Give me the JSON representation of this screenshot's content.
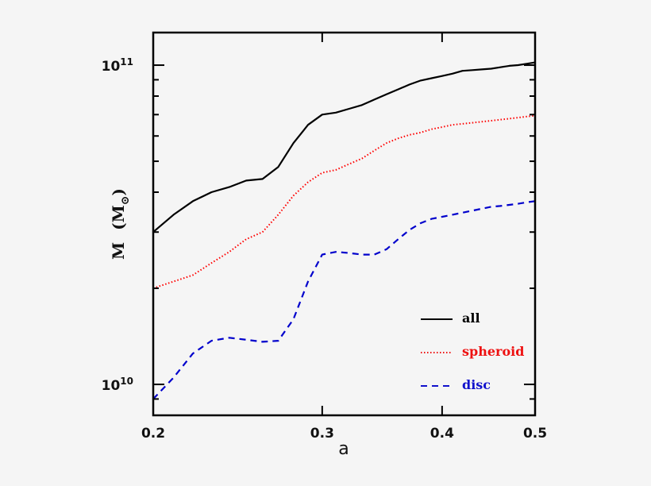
{
  "chart_data": {
    "type": "line",
    "title": "",
    "xlabel": "a",
    "ylabel": "M (M⊙)",
    "xscale": "log",
    "yscale": "log",
    "xlim": [
      0.2,
      0.5
    ],
    "ylim": [
      8000000000.0,
      126500000000.0
    ],
    "grid": false,
    "legend_position": "lower right (inside)",
    "x_ticks": [
      0.2,
      0.3,
      0.4,
      0.5
    ],
    "x_tick_labels": [
      "0.2",
      "0.3",
      "0.4",
      "0.5"
    ],
    "y_ticks": [
      10000000000.0,
      100000000000.0
    ],
    "y_tick_labels": [
      {
        "base": "10",
        "exp": "10"
      },
      {
        "base": "10",
        "exp": "11"
      }
    ],
    "x": [
      0.2,
      0.21,
      0.22,
      0.23,
      0.24,
      0.25,
      0.26,
      0.27,
      0.28,
      0.29,
      0.3,
      0.31,
      0.32,
      0.33,
      0.34,
      0.35,
      0.36,
      0.37,
      0.38,
      0.39,
      0.4,
      0.41,
      0.42,
      0.43,
      0.44,
      0.45,
      0.46,
      0.47,
      0.48,
      0.49,
      0.5
    ],
    "series": [
      {
        "name": "all",
        "color": "#000000",
        "style": "solid",
        "values": [
          30000000000.0,
          34000000000.0,
          37500000000.0,
          40000000000.0,
          41500000000.0,
          43500000000.0,
          44000000000.0,
          48000000000.0,
          57000000000.0,
          65000000000.0,
          70000000000.0,
          71000000000.0,
          73000000000.0,
          75000000000.0,
          78000000000.0,
          81000000000.0,
          84000000000.0,
          87000000000.0,
          89500000000.0,
          91000000000.0,
          92500000000.0,
          94000000000.0,
          96000000000.0,
          96500000000.0,
          97000000000.0,
          97500000000.0,
          98500000000.0,
          99500000000.0,
          100000000000.0,
          101000000000.0,
          102000000000.0
        ]
      },
      {
        "name": "spheroid",
        "color": "#ff0000",
        "style": "dotted",
        "values": [
          20000000000.0,
          21000000000.0,
          22000000000.0,
          24000000000.0,
          26000000000.0,
          28500000000.0,
          30000000000.0,
          34000000000.0,
          39000000000.0,
          43000000000.0,
          46000000000.0,
          47000000000.0,
          49000000000.0,
          51000000000.0,
          54000000000.0,
          57000000000.0,
          59000000000.0,
          60500000000.0,
          61500000000.0,
          63000000000.0,
          64000000000.0,
          65000000000.0,
          65500000000.0,
          66000000000.0,
          66500000000.0,
          67000000000.0,
          67500000000.0,
          68000000000.0,
          68500000000.0,
          69000000000.0,
          69500000000.0
        ]
      },
      {
        "name": "disc",
        "color": "#0000cc",
        "style": "dashed",
        "values": [
          9000000000.0,
          10500000000.0,
          12500000000.0,
          13700000000.0,
          14000000000.0,
          13800000000.0,
          13600000000.0,
          13700000000.0,
          16000000000.0,
          21000000000.0,
          25500000000.0,
          26000000000.0,
          25800000000.0,
          25500000000.0,
          25500000000.0,
          26500000000.0,
          28500000000.0,
          30500000000.0,
          32000000000.0,
          33000000000.0,
          33500000000.0,
          34000000000.0,
          34500000000.0,
          35000000000.0,
          35500000000.0,
          36000000000.0,
          36200000000.0,
          36500000000.0,
          36800000000.0,
          37200000000.0,
          37500000000.0
        ]
      }
    ]
  },
  "legend": {
    "items": [
      {
        "label": "all",
        "color": "#000000",
        "dash": ""
      },
      {
        "label": "spheroid",
        "color": "#ee1111",
        "dash": "1.5 2.5"
      },
      {
        "label": "disc",
        "color": "#1111cc",
        "dash": "8 6"
      }
    ]
  },
  "axes": {
    "xlabel": "a",
    "ylabel_main": "M",
    "ylabel_open": "(M",
    "ylabel_sub": "⊙",
    "ylabel_close": ")"
  }
}
